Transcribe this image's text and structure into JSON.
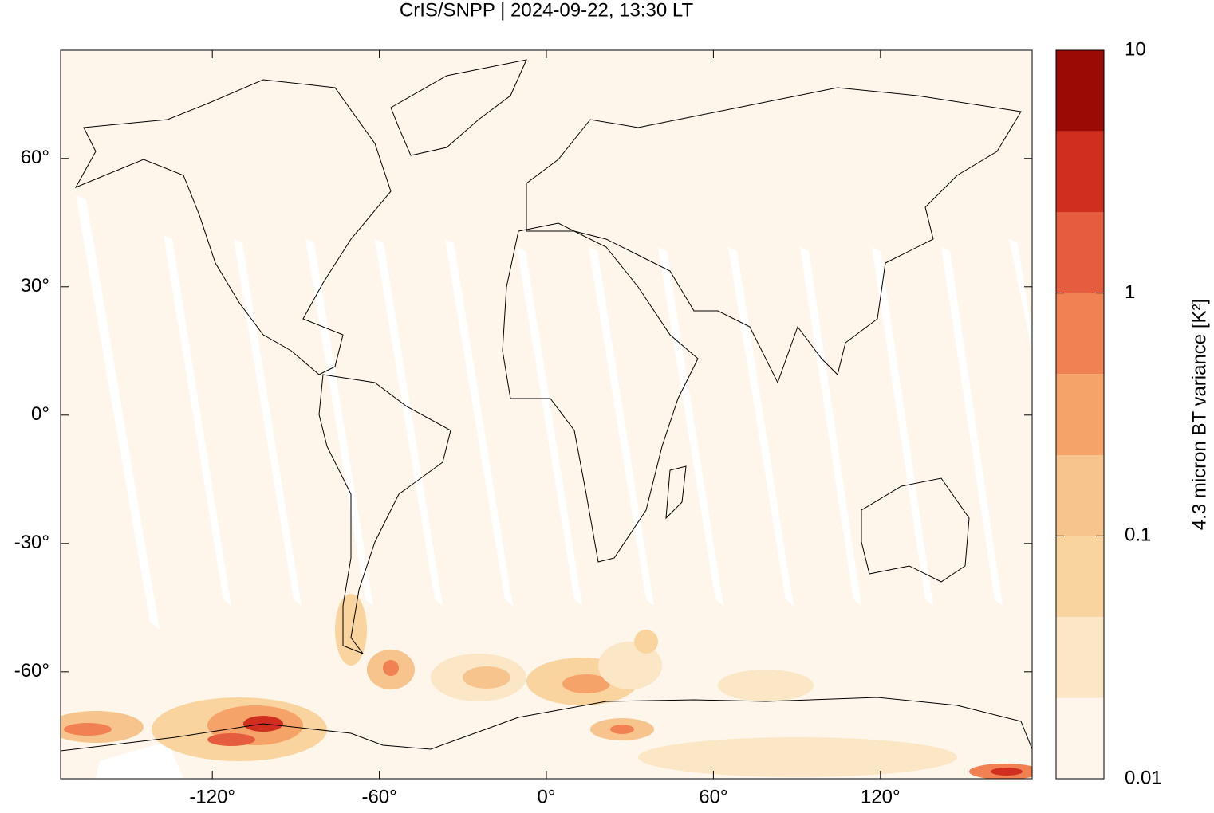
{
  "chart_data": {
    "type": "map",
    "title": "CrIS/SNPP | 2024-09-22, 13:30 LT",
    "xlim": [
      -174.5,
      174.5
    ],
    "ylim": [
      -85,
      85.3
    ],
    "xticks": [
      {
        "value": -120,
        "label": "-120°"
      },
      {
        "value": -60,
        "label": "-60°"
      },
      {
        "value": 0,
        "label": "0°"
      },
      {
        "value": 60,
        "label": "60°"
      },
      {
        "value": 120,
        "label": "120°"
      }
    ],
    "yticks": [
      {
        "value": 60,
        "label": "60°"
      },
      {
        "value": 30,
        "label": "30°"
      },
      {
        "value": 0,
        "label": "0°"
      },
      {
        "value": -30,
        "label": "-30°"
      },
      {
        "value": -60,
        "label": "-60°"
      }
    ],
    "colorbar": {
      "label": "4.3 micron BT variance [K²]",
      "scale": "log",
      "lim": [
        0.01,
        10
      ],
      "ticks": [
        0.01,
        0.1,
        1,
        10
      ],
      "levels": [
        0.01,
        0.0215,
        0.0464,
        0.1,
        0.215,
        0.464,
        1,
        2.15,
        4.64,
        10
      ],
      "colors": [
        "#fef6eb",
        "#fbe6c6",
        "#fad49e",
        "#f8c48d",
        "#f6a36a",
        "#f18152",
        "#e65c3e",
        "#d02e1f",
        "#9b0a05"
      ]
    }
  }
}
